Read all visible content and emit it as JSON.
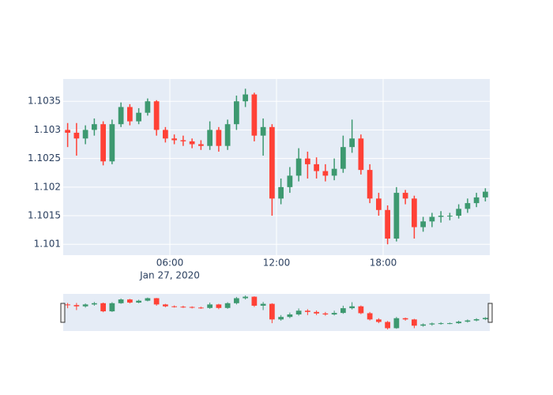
{
  "chart_data": {
    "type": "candlestick",
    "x": [
      "2020-01-27 00:15",
      "2020-01-27 00:45",
      "2020-01-27 01:15",
      "2020-01-27 01:45",
      "2020-01-27 02:15",
      "2020-01-27 02:45",
      "2020-01-27 03:15",
      "2020-01-27 03:45",
      "2020-01-27 04:15",
      "2020-01-27 04:45",
      "2020-01-27 05:15",
      "2020-01-27 05:45",
      "2020-01-27 06:15",
      "2020-01-27 06:45",
      "2020-01-27 07:15",
      "2020-01-27 07:45",
      "2020-01-27 08:15",
      "2020-01-27 08:45",
      "2020-01-27 09:15",
      "2020-01-27 09:45",
      "2020-01-27 10:15",
      "2020-01-27 10:45",
      "2020-01-27 11:15",
      "2020-01-27 11:45",
      "2020-01-27 12:15",
      "2020-01-27 12:45",
      "2020-01-27 13:15",
      "2020-01-27 13:45",
      "2020-01-27 14:15",
      "2020-01-27 14:45",
      "2020-01-27 15:15",
      "2020-01-27 15:45",
      "2020-01-27 16:15",
      "2020-01-27 16:45",
      "2020-01-27 17:15",
      "2020-01-27 17:45",
      "2020-01-27 18:15",
      "2020-01-27 18:45",
      "2020-01-27 19:15",
      "2020-01-27 19:45",
      "2020-01-27 20:15",
      "2020-01-27 20:45",
      "2020-01-27 21:15",
      "2020-01-27 21:45",
      "2020-01-27 22:15",
      "2020-01-27 22:45",
      "2020-01-27 23:15",
      "2020-01-27 23:45"
    ],
    "open": [
      1.103,
      1.10295,
      1.10285,
      1.103,
      1.1031,
      1.10245,
      1.1031,
      1.1034,
      1.10315,
      1.1033,
      1.1035,
      1.103,
      1.10285,
      1.10282,
      1.1028,
      1.10275,
      1.10272,
      1.103,
      1.10272,
      1.1031,
      1.1035,
      1.10362,
      1.1029,
      1.10305,
      1.1018,
      1.102,
      1.1022,
      1.1025,
      1.1024,
      1.10228,
      1.1022,
      1.10232,
      1.1027,
      1.10285,
      1.1023,
      1.1018,
      1.1016,
      1.1011,
      1.1019,
      1.1018,
      1.1013,
      1.1014,
      1.10148,
      1.1015,
      1.1015,
      1.10162,
      1.10172,
      1.10182
    ],
    "high": [
      1.10312,
      1.10312,
      1.10308,
      1.1032,
      1.10315,
      1.10318,
      1.10348,
      1.10345,
      1.10338,
      1.10355,
      1.10352,
      1.10305,
      1.10292,
      1.1029,
      1.10285,
      1.10282,
      1.10315,
      1.10305,
      1.10318,
      1.1036,
      1.10372,
      1.10365,
      1.1032,
      1.1031,
      1.10215,
      1.10235,
      1.10268,
      1.10262,
      1.10252,
      1.1024,
      1.1025,
      1.1029,
      1.10318,
      1.10292,
      1.1024,
      1.1019,
      1.10168,
      1.102,
      1.10195,
      1.10185,
      1.10148,
      1.10155,
      1.10158,
      1.10155,
      1.1017,
      1.1018,
      1.1019,
      1.10198
    ],
    "low": [
      1.1027,
      1.10255,
      1.10275,
      1.1029,
      1.10238,
      1.1024,
      1.10305,
      1.10308,
      1.1031,
      1.10325,
      1.1029,
      1.10278,
      1.10275,
      1.10272,
      1.10268,
      1.10265,
      1.10265,
      1.10262,
      1.10265,
      1.103,
      1.1034,
      1.1028,
      1.10255,
      1.1015,
      1.1017,
      1.1019,
      1.1021,
      1.10215,
      1.10215,
      1.1021,
      1.10212,
      1.10225,
      1.1026,
      1.10222,
      1.10172,
      1.1015,
      1.101,
      1.10105,
      1.1017,
      1.1011,
      1.10122,
      1.1013,
      1.10138,
      1.10142,
      1.10145,
      1.10155,
      1.10165,
      1.10175
    ],
    "close": [
      1.10295,
      1.10285,
      1.103,
      1.1031,
      1.10245,
      1.1031,
      1.1034,
      1.10315,
      1.1033,
      1.1035,
      1.103,
      1.10285,
      1.10282,
      1.1028,
      1.10275,
      1.10272,
      1.103,
      1.10272,
      1.1031,
      1.1035,
      1.10362,
      1.1029,
      1.10305,
      1.1018,
      1.102,
      1.1022,
      1.1025,
      1.1024,
      1.10228,
      1.1022,
      1.10232,
      1.1027,
      1.10285,
      1.1023,
      1.1018,
      1.1016,
      1.1011,
      1.1019,
      1.1018,
      1.1013,
      1.1014,
      1.10148,
      1.1015,
      1.1015,
      1.10162,
      1.10172,
      1.10182,
      1.10192
    ],
    "increasing_color": "#3D9970",
    "decreasing_color": "#FF4136",
    "xlim": [
      "2020-01-27 00:00",
      "2020-01-28 00:00"
    ],
    "xticks": [
      {
        "value": "2020-01-27 06:00",
        "label": "06:00"
      },
      {
        "value": "2020-01-27 12:00",
        "label": "12:00"
      },
      {
        "value": "2020-01-27 18:00",
        "label": "18:00"
      }
    ],
    "x_date_label": "Jan 27, 2020",
    "ylim": [
      1.10081,
      1.10389
    ],
    "yticks": [
      1.101,
      1.1015,
      1.102,
      1.1025,
      1.103,
      1.1035
    ],
    "grid": true,
    "rangeslider": true
  }
}
